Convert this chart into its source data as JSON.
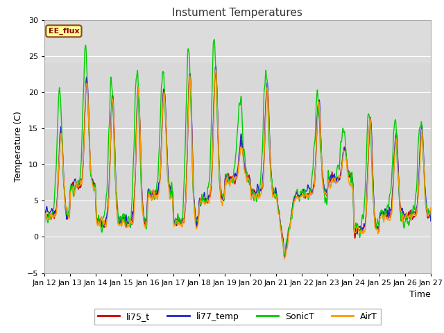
{
  "title": "Instument Temperatures",
  "xlabel": "Time",
  "ylabel": "Temperature (C)",
  "ylim": [
    -5,
    30
  ],
  "shaded_band_low": 5,
  "shaded_band_high": 24,
  "shaded_color": "#d8d8d8",
  "annotation_text": "EE_flux",
  "colors_li75_t": "#cc0000",
  "colors_li77_temp": "#2222cc",
  "colors_SonicT": "#00cc00",
  "colors_AirT": "#ff9900",
  "line_width": 1.0,
  "bg_color": "#dcdcdc",
  "tick_labels": [
    "Jan 12",
    "Jan 13",
    "Jan 14",
    "Jan 15",
    "Jan 16",
    "Jan 17",
    "Jan 18",
    "Jan 19",
    "Jan 20",
    "Jan 21",
    "Jan 22",
    "Jan 23",
    "Jan 24",
    "Jan 25",
    "Jan 26",
    "Jan 27"
  ],
  "yticks": [
    -5,
    0,
    5,
    10,
    15,
    20,
    25,
    30
  ]
}
